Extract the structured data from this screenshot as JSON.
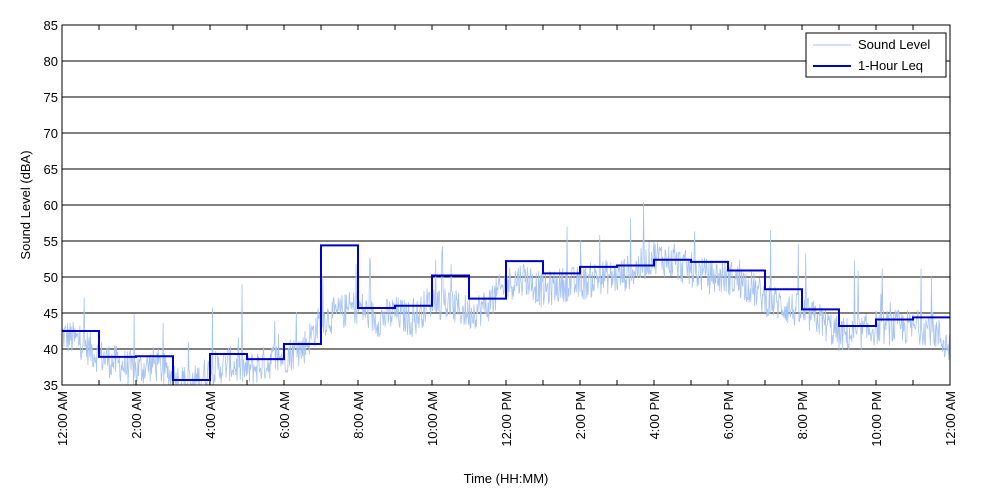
{
  "chart_data": {
    "type": "line",
    "title": "",
    "xlabel": "Time (HH:MM)",
    "ylabel": "Sound Level (dBA)",
    "xlim": [
      0,
      24
    ],
    "ylim": [
      35,
      85
    ],
    "yticks": [
      35,
      40,
      45,
      50,
      55,
      60,
      65,
      70,
      75,
      80,
      85
    ],
    "xticks": [
      {
        "hour": 0,
        "label": "12:00 AM"
      },
      {
        "hour": 2,
        "label": "2:00 AM"
      },
      {
        "hour": 4,
        "label": "4:00 AM"
      },
      {
        "hour": 6,
        "label": "6:00 AM"
      },
      {
        "hour": 8,
        "label": "8:00 AM"
      },
      {
        "hour": 10,
        "label": "10:00 AM"
      },
      {
        "hour": 12,
        "label": "12:00 PM"
      },
      {
        "hour": 14,
        "label": "2:00 PM"
      },
      {
        "hour": 16,
        "label": "4:00 PM"
      },
      {
        "hour": 18,
        "label": "6:00 PM"
      },
      {
        "hour": 20,
        "label": "8:00 PM"
      },
      {
        "hour": 22,
        "label": "10:00 PM"
      },
      {
        "hour": 24,
        "label": "12:00 AM"
      }
    ],
    "grid": "horizontal",
    "legend_position": "top-right",
    "series": [
      {
        "name": "Sound Level",
        "color": "#a7c3f2",
        "style": "thin-noisy",
        "x": [
          0,
          0.5,
          1,
          1.5,
          2,
          2.5,
          3,
          3.5,
          4,
          4.5,
          5,
          5.5,
          6,
          6.5,
          7,
          7.5,
          8,
          8.5,
          9,
          9.5,
          10,
          10.5,
          11,
          11.5,
          12,
          12.5,
          13,
          13.5,
          14,
          14.5,
          15,
          15.5,
          16,
          16.5,
          17,
          17.5,
          18,
          18.5,
          19,
          19.5,
          20,
          20.5,
          21,
          21.5,
          22,
          22.5,
          23,
          23.5,
          24
        ],
        "y": [
          42,
          41,
          39,
          38,
          37,
          38,
          36,
          35,
          37,
          38,
          37,
          38,
          39,
          40,
          44,
          45,
          46,
          44,
          45,
          44,
          47,
          46,
          45,
          46,
          49,
          50,
          48,
          49,
          49,
          50,
          50,
          51,
          53,
          52,
          51,
          50,
          50,
          49,
          47,
          46,
          45,
          44,
          42,
          42,
          43,
          43,
          43,
          43,
          40
        ]
      },
      {
        "name": "1-Hour Leq",
        "color": "#0000cc",
        "style": "step",
        "hours": [
          0,
          1,
          2,
          3,
          4,
          5,
          6,
          7,
          8,
          9,
          10,
          11,
          12,
          13,
          14,
          15,
          16,
          17,
          18,
          19,
          20,
          21,
          22,
          23
        ],
        "values": [
          42.5,
          38.9,
          39.0,
          35.7,
          39.3,
          38.6,
          40.7,
          54.4,
          45.7,
          46.0,
          50.2,
          47.0,
          52.2,
          50.5,
          51.4,
          51.6,
          52.4,
          52.1,
          50.9,
          48.3,
          45.5,
          43.2,
          44.1,
          44.4
        ]
      }
    ]
  }
}
